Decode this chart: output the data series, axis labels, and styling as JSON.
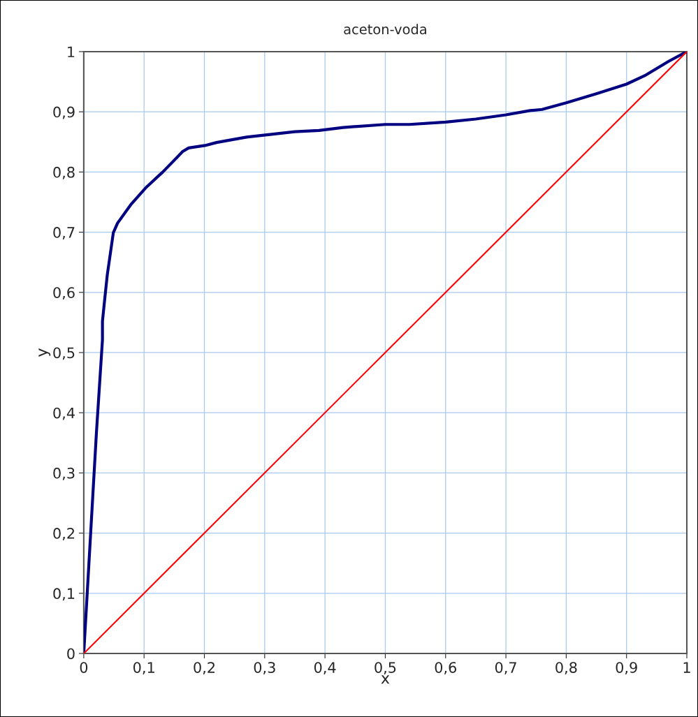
{
  "chart_data": {
    "type": "line",
    "title": "aceton-voda",
    "xlabel": "x",
    "ylabel": "y",
    "xlim": [
      0,
      1
    ],
    "ylim": [
      0,
      1
    ],
    "xticks": [
      0,
      {
        "value": 0.1,
        "label": "0,1"
      },
      {
        "value": 0.2,
        "label": "0,2"
      },
      {
        "value": 0.3,
        "label": "0,3"
      },
      {
        "value": 0.4,
        "label": "0,4"
      },
      {
        "value": 0.5,
        "label": "0,5"
      },
      {
        "value": 0.6,
        "label": "0,6"
      },
      {
        "value": 0.7,
        "label": "0,7"
      },
      {
        "value": 0.8,
        "label": "0,8"
      },
      {
        "value": 0.9,
        "label": "0,9"
      },
      1
    ],
    "yticks": [
      0,
      {
        "value": 0.1,
        "label": "0,1"
      },
      {
        "value": 0.2,
        "label": "0,2"
      },
      {
        "value": 0.3,
        "label": "0,3"
      },
      {
        "value": 0.4,
        "label": "0,4"
      },
      {
        "value": 0.5,
        "label": "0,5"
      },
      {
        "value": 0.6,
        "label": "0,6"
      },
      {
        "value": 0.7,
        "label": "0,7"
      },
      {
        "value": 0.8,
        "label": "0,8"
      },
      {
        "value": 0.9,
        "label": "0,9"
      },
      1
    ],
    "grid": true,
    "legend": false,
    "marker": "none",
    "line_style": "solid",
    "series": [
      {
        "color": "#000080",
        "x": [
          0,
          0.021,
          0.031,
          0.031,
          0.035,
          0.039,
          0.049,
          0.056,
          0.079,
          0.104,
          0.131,
          0.164,
          0.174,
          0.201,
          0.22,
          0.27,
          0.35,
          0.39,
          0.43,
          0.5,
          0.54,
          0.6,
          0.65,
          0.7,
          0.74,
          0.76,
          0.8,
          0.85,
          0.9,
          0.93,
          0.97,
          1
        ],
        "values": [
          0,
          0.367,
          0.521,
          0.552,
          0.591,
          0.629,
          0.699,
          0.715,
          0.747,
          0.775,
          0.8,
          0.834,
          0.84,
          0.844,
          0.849,
          0.858,
          0.867,
          0.869,
          0.874,
          0.879,
          0.879,
          0.883,
          0.888,
          0.895,
          0.902,
          0.904,
          0.915,
          0.93,
          0.946,
          0.96,
          0.984,
          1
        ]
      },
      {
        "color": "#ff0000",
        "x": [
          0,
          1
        ],
        "values": [
          0,
          1
        ]
      }
    ]
  }
}
